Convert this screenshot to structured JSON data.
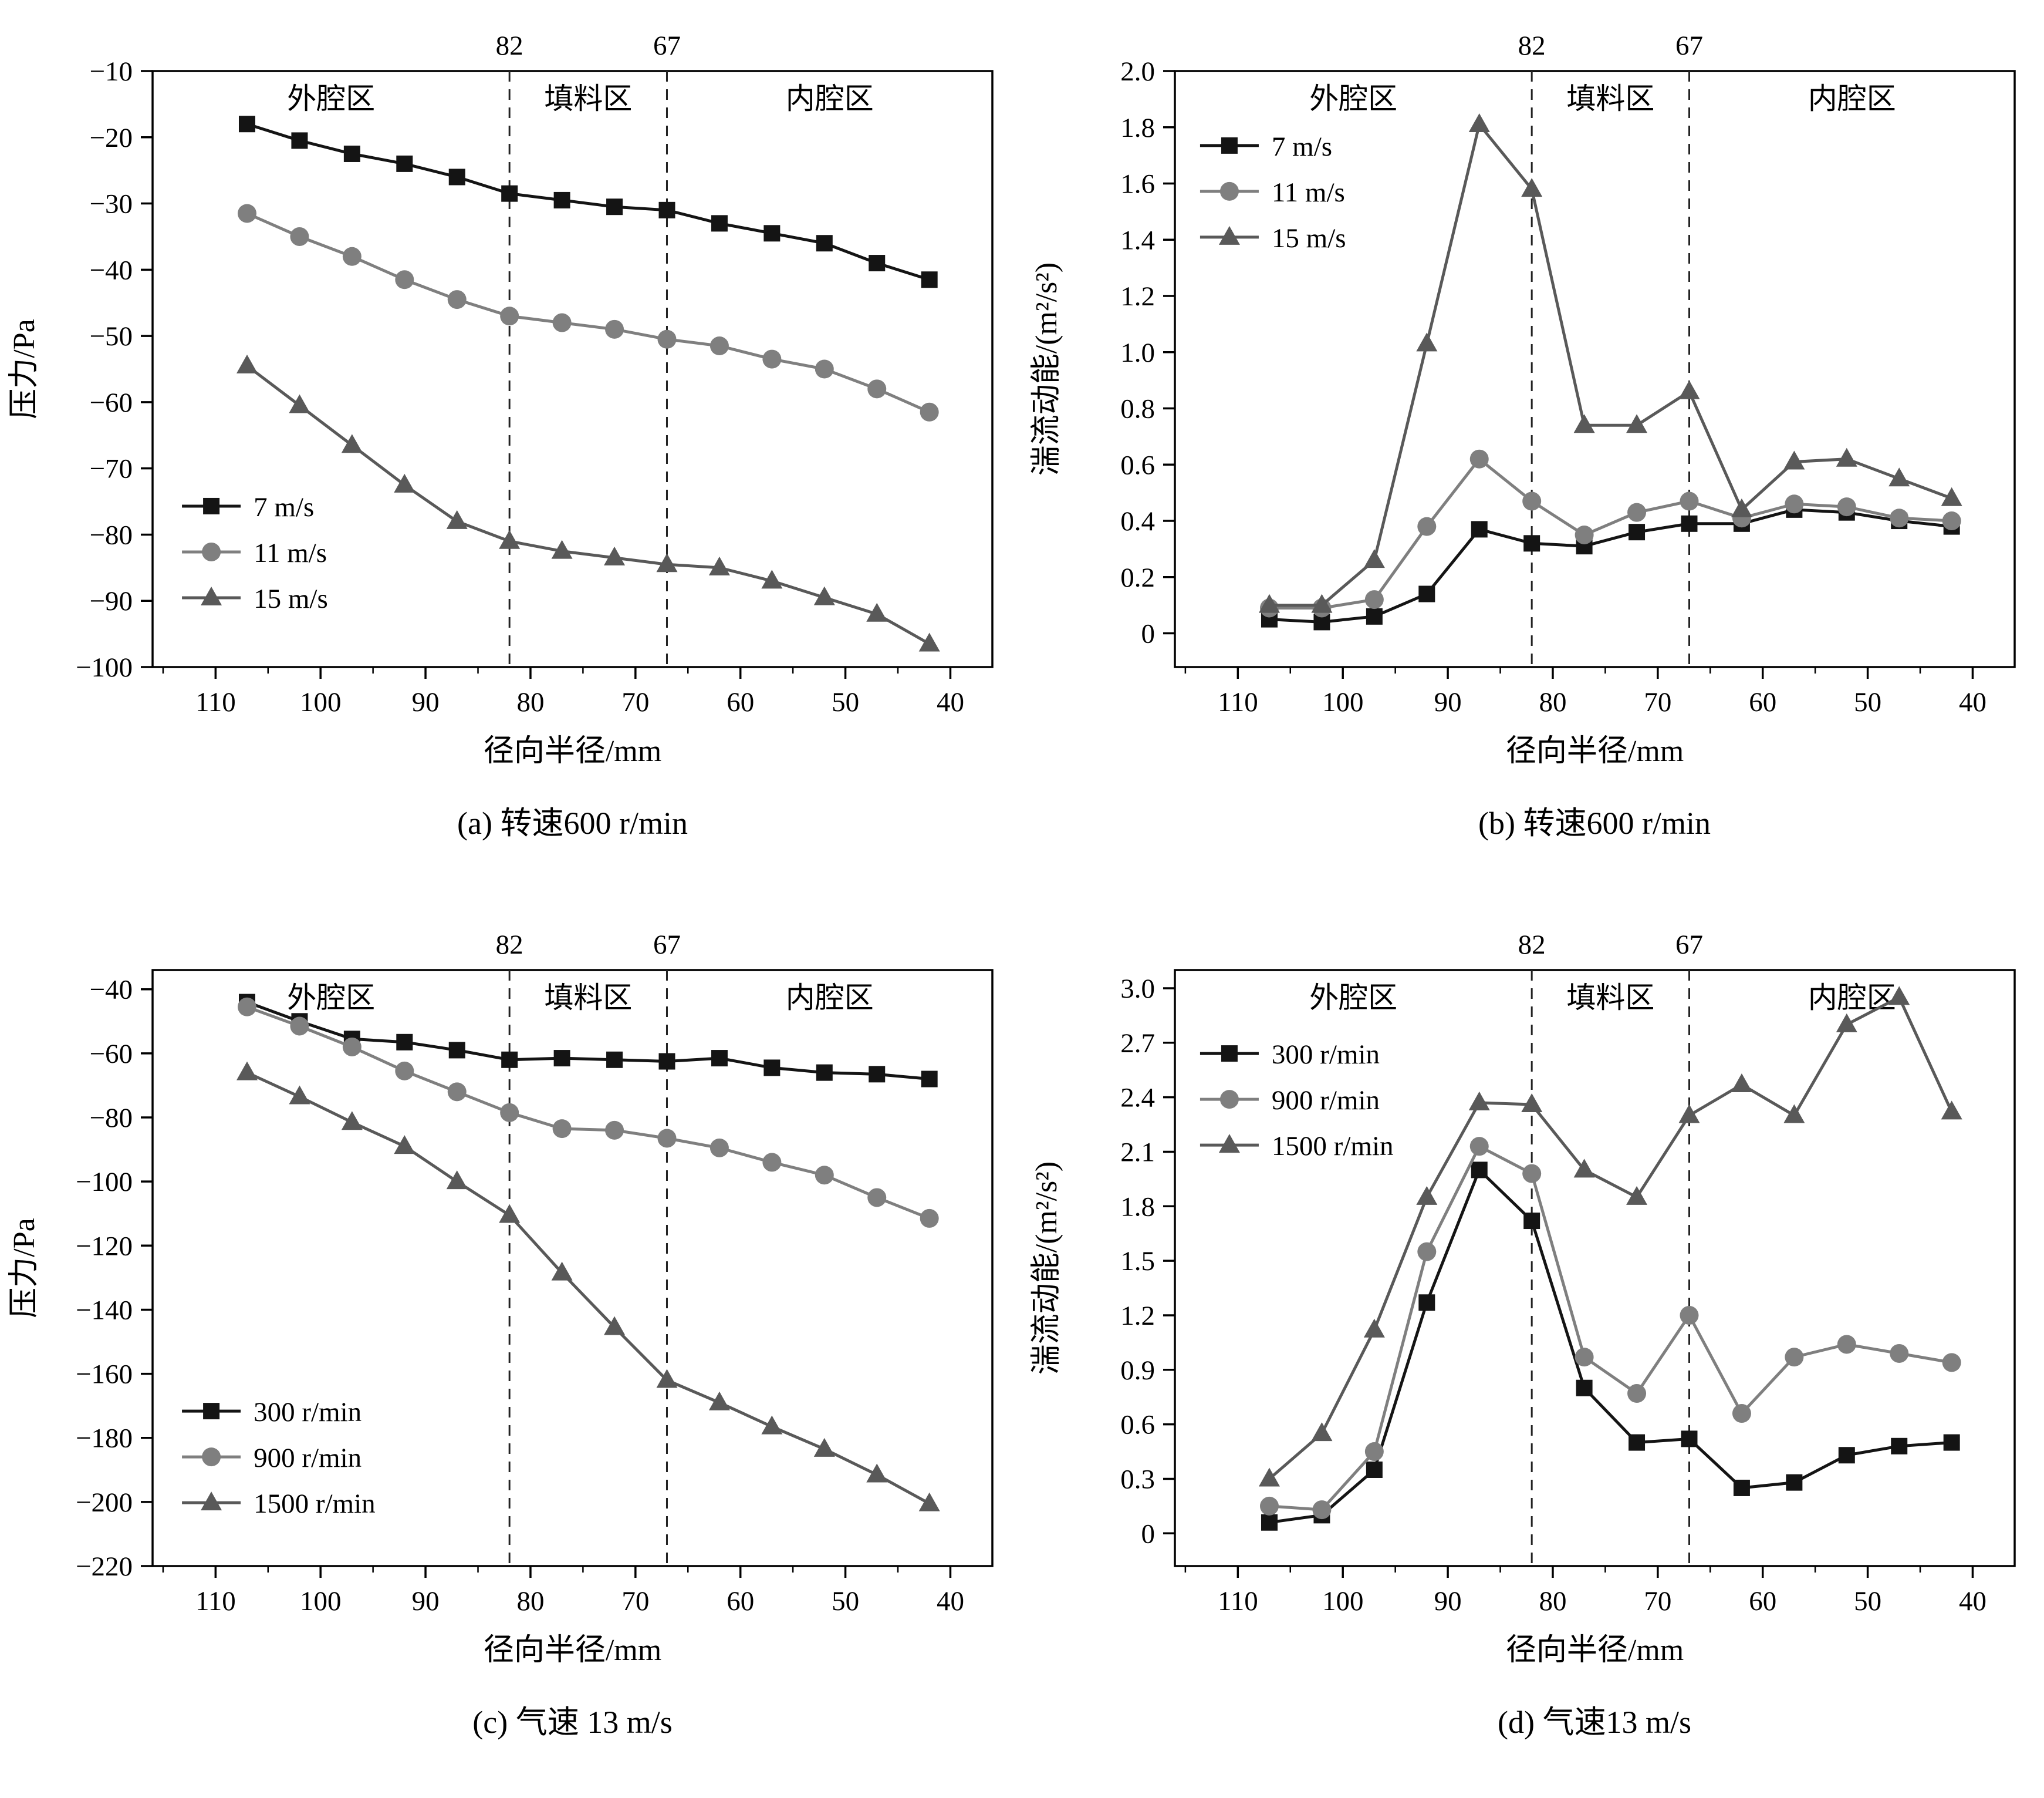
{
  "page": {
    "background": "#ffffff"
  },
  "chart_data": [
    {
      "id": "a",
      "type": "line",
      "caption": "(a) 转速600 r/min",
      "xlabel": "径向半径/mm",
      "ylabel": "压力/Pa",
      "xlim": [
        116,
        36
      ],
      "xticks": [
        110,
        100,
        90,
        80,
        70,
        60,
        50,
        40
      ],
      "ylim": [
        -100,
        -10
      ],
      "yticks": [
        -10,
        -20,
        -30,
        -40,
        -50,
        -60,
        -70,
        -80,
        -90,
        -100
      ],
      "ylabels": [
        "−10",
        "−20",
        "−30",
        "−40",
        "−50",
        "−60",
        "−70",
        "−80",
        "−90",
        "−100"
      ],
      "dividers": [
        82,
        67
      ],
      "divider_labels": [
        "82",
        "67"
      ],
      "regions": [
        "外腔区",
        "填料区",
        "内腔区"
      ],
      "legend": {
        "x": 0.035,
        "y": 0.73
      },
      "grid": false,
      "x": [
        107,
        102,
        97,
        92,
        87,
        82,
        77,
        72,
        67,
        62,
        57,
        52,
        47,
        42
      ],
      "series": [
        {
          "name": "7 m/s",
          "marker": "square",
          "color": "#141414",
          "values": [
            -18,
            -20.5,
            -22.5,
            -24,
            -26,
            -28.5,
            -29.5,
            -30.5,
            -31,
            -33,
            -34.5,
            -36,
            -39,
            -41.5
          ]
        },
        {
          "name": "11 m/s",
          "marker": "circle",
          "color": "#7f7f7f",
          "values": [
            -31.5,
            -35,
            -38,
            -41.5,
            -44.5,
            -47,
            -48,
            -49,
            -50.5,
            -51.5,
            -53.5,
            -55,
            -58,
            -61.5
          ]
        },
        {
          "name": "15 m/s",
          "marker": "triangle",
          "color": "#595959",
          "values": [
            -54.5,
            -60.5,
            -66.5,
            -72.5,
            -78,
            -81,
            -82.5,
            -83.5,
            -84.5,
            -85,
            -87,
            -89.5,
            -92,
            -96.5
          ]
        }
      ]
    },
    {
      "id": "b",
      "type": "line",
      "caption": "(b) 转速600 r/min",
      "xlabel": "径向半径/mm",
      "ylabel": "湍流动能/(m²/s²)",
      "xlim": [
        116,
        36
      ],
      "xticks": [
        110,
        100,
        90,
        80,
        70,
        60,
        50,
        40
      ],
      "ylim": [
        -0.12,
        2.0
      ],
      "yticks": [
        0,
        0.2,
        0.4,
        0.6,
        0.8,
        1.0,
        1.2,
        1.4,
        1.6,
        1.8,
        2.0
      ],
      "ylabels": [
        "0",
        "0.2",
        "0.4",
        "0.6",
        "0.8",
        "1.0",
        "1.2",
        "1.4",
        "1.6",
        "1.8",
        "2.0"
      ],
      "dividers": [
        82,
        67
      ],
      "divider_labels": [
        "82",
        "67"
      ],
      "regions": [
        "外腔区",
        "填料区",
        "内腔区"
      ],
      "legend": {
        "x": 0.03,
        "y": 0.125
      },
      "grid": false,
      "x": [
        107,
        102,
        97,
        92,
        87,
        82,
        77,
        72,
        67,
        62,
        57,
        52,
        47,
        42
      ],
      "series": [
        {
          "name": "7 m/s",
          "marker": "square",
          "color": "#141414",
          "values": [
            0.05,
            0.04,
            0.06,
            0.14,
            0.37,
            0.32,
            0.31,
            0.36,
            0.39,
            0.39,
            0.44,
            0.43,
            0.4,
            0.38
          ]
        },
        {
          "name": "11 m/s",
          "marker": "circle",
          "color": "#7f7f7f",
          "values": [
            0.09,
            0.09,
            0.12,
            0.38,
            0.62,
            0.47,
            0.35,
            0.43,
            0.47,
            0.41,
            0.46,
            0.45,
            0.41,
            0.4
          ]
        },
        {
          "name": "15 m/s",
          "marker": "triangle",
          "color": "#595959",
          "values": [
            0.1,
            0.1,
            0.26,
            1.03,
            1.81,
            1.58,
            0.74,
            0.74,
            0.86,
            0.44,
            0.61,
            0.62,
            0.55,
            0.48
          ]
        }
      ]
    },
    {
      "id": "c",
      "type": "line",
      "caption": "(c) 气速 13 m/s",
      "xlabel": "径向半径/mm",
      "ylabel": "压力/Pa",
      "xlim": [
        116,
        36
      ],
      "xticks": [
        110,
        100,
        90,
        80,
        70,
        60,
        50,
        40
      ],
      "ylim": [
        -220,
        -34
      ],
      "yticks": [
        -40,
        -60,
        -80,
        -100,
        -120,
        -140,
        -160,
        -180,
        -200,
        -220
      ],
      "ylabels": [
        "−40",
        "−60",
        "−80",
        "−100",
        "−120",
        "−140",
        "−160",
        "−180",
        "−200",
        "−220"
      ],
      "dividers": [
        82,
        67
      ],
      "divider_labels": [
        "82",
        "67"
      ],
      "regions": [
        "外腔区",
        "填料区",
        "内腔区"
      ],
      "legend": {
        "x": 0.035,
        "y": 0.74
      },
      "grid": false,
      "x": [
        107,
        102,
        97,
        92,
        87,
        82,
        77,
        72,
        67,
        62,
        57,
        52,
        47,
        42
      ],
      "series": [
        {
          "name": "300 r/min",
          "marker": "square",
          "color": "#141414",
          "values": [
            -44,
            -50,
            -55.5,
            -56.5,
            -59,
            -62,
            -61.5,
            -62,
            -62.5,
            -61.5,
            -64.5,
            -66,
            -66.5,
            -68
          ]
        },
        {
          "name": "900 r/min",
          "marker": "circle",
          "color": "#7f7f7f",
          "values": [
            -45.5,
            -51.5,
            -58,
            -65.5,
            -72,
            -78.5,
            -83.5,
            -84,
            -86.5,
            -89.5,
            -94,
            -98,
            -105,
            -111.5
          ]
        },
        {
          "name": "1500 r/min",
          "marker": "triangle",
          "color": "#595959",
          "values": [
            -66,
            -73.5,
            -81.5,
            -89,
            -100,
            -110.5,
            -128.5,
            -145.5,
            -162,
            -169,
            -176.5,
            -183.5,
            -191.5,
            -200.5
          ]
        }
      ]
    },
    {
      "id": "d",
      "type": "line",
      "caption": "(d) 气速13 m/s",
      "xlabel": "径向半径/mm",
      "ylabel": "湍流动能/(m²/s²)",
      "xlim": [
        116,
        36
      ],
      "xticks": [
        110,
        100,
        90,
        80,
        70,
        60,
        50,
        40
      ],
      "ylim": [
        -0.18,
        3.1
      ],
      "yticks": [
        0,
        0.3,
        0.6,
        0.9,
        1.2,
        1.5,
        1.8,
        2.1,
        2.4,
        2.7,
        3.0
      ],
      "ylabels": [
        "0",
        "0.3",
        "0.6",
        "0.9",
        "1.2",
        "1.5",
        "1.8",
        "2.1",
        "2.4",
        "2.7",
        "3.0"
      ],
      "dividers": [
        82,
        67
      ],
      "divider_labels": [
        "82",
        "67"
      ],
      "regions": [
        "外腔区",
        "填料区",
        "内腔区"
      ],
      "legend": {
        "x": 0.03,
        "y": 0.14
      },
      "grid": false,
      "x": [
        107,
        102,
        97,
        92,
        87,
        82,
        77,
        72,
        67,
        62,
        57,
        52,
        47,
        42
      ],
      "series": [
        {
          "name": "300 r/min",
          "marker": "square",
          "color": "#141414",
          "values": [
            0.06,
            0.1,
            0.35,
            1.27,
            2.0,
            1.72,
            0.8,
            0.5,
            0.52,
            0.25,
            0.28,
            0.43,
            0.48,
            0.5
          ]
        },
        {
          "name": "900 r/min",
          "marker": "circle",
          "color": "#7f7f7f",
          "values": [
            0.15,
            0.13,
            0.45,
            1.55,
            2.13,
            1.98,
            0.97,
            0.77,
            1.2,
            0.66,
            0.97,
            1.04,
            0.99,
            0.94
          ]
        },
        {
          "name": "1500 r/min",
          "marker": "triangle",
          "color": "#595959",
          "values": [
            0.3,
            0.55,
            1.12,
            1.85,
            2.37,
            2.36,
            2.0,
            1.85,
            2.3,
            2.47,
            2.3,
            2.8,
            2.95,
            2.32
          ]
        }
      ]
    }
  ]
}
